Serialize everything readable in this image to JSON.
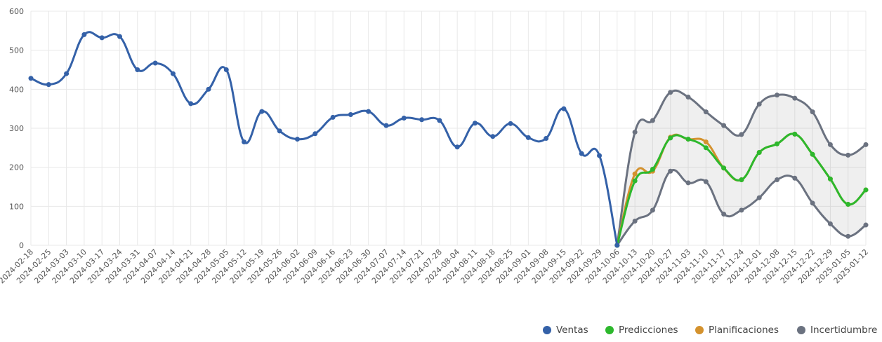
{
  "chart_data": {
    "type": "line",
    "categories": [
      "2024-02-18",
      "2024-02-25",
      "2024-03-03",
      "2024-03-10",
      "2024-03-17",
      "2024-03-24",
      "2024-03-31",
      "2024-04-07",
      "2024-04-14",
      "2024-04-21",
      "2024-04-28",
      "2024-05-05",
      "2024-05-12",
      "2024-05-19",
      "2024-05-26",
      "2024-06-02",
      "2024-06-09",
      "2024-06-16",
      "2024-06-23",
      "2024-06-30",
      "2024-07-07",
      "2024-07-14",
      "2024-07-21",
      "2024-07-28",
      "2024-08-04",
      "2024-08-11",
      "2024-08-18",
      "2024-08-25",
      "2024-09-01",
      "2024-09-08",
      "2024-09-15",
      "2024-09-22",
      "2024-09-29",
      "2024-10-06",
      "2024-10-13",
      "2024-10-20",
      "2024-10-27",
      "2024-11-03",
      "2024-11-10",
      "2024-11-17",
      "2024-11-24",
      "2024-12-01",
      "2024-12-08",
      "2024-12-15",
      "2024-12-22",
      "2024-12-29",
      "2025-01-05",
      "2025-01-12"
    ],
    "series": [
      {
        "name": "Ventas",
        "color": "#3461a8",
        "values": [
          428,
          412,
          440,
          540,
          532,
          535,
          450,
          467,
          440,
          363,
          400,
          450,
          265,
          343,
          293,
          272,
          286,
          328,
          335,
          343,
          307,
          326,
          322,
          320,
          252,
          313,
          279,
          312,
          276,
          274,
          350,
          235,
          230,
          0,
          null,
          null,
          null,
          null,
          null,
          null,
          null,
          null,
          null,
          null,
          null,
          null,
          null,
          null
        ]
      },
      {
        "name": "Predicciones",
        "color": "#2db82d",
        "values": [
          null,
          null,
          null,
          null,
          null,
          null,
          null,
          null,
          null,
          null,
          null,
          null,
          null,
          null,
          null,
          null,
          null,
          null,
          null,
          null,
          null,
          null,
          null,
          null,
          null,
          null,
          null,
          null,
          null,
          null,
          null,
          null,
          null,
          0,
          165,
          195,
          275,
          272,
          250,
          198,
          168,
          238,
          260,
          285,
          233,
          170,
          105,
          142
        ]
      },
      {
        "name": "Planificaciones",
        "color": "#d4922e",
        "values": [
          null,
          null,
          null,
          null,
          null,
          null,
          null,
          null,
          null,
          null,
          null,
          null,
          null,
          null,
          null,
          null,
          null,
          null,
          null,
          null,
          null,
          null,
          null,
          null,
          null,
          null,
          null,
          null,
          null,
          null,
          null,
          null,
          null,
          0,
          183,
          190,
          277,
          272,
          265,
          198,
          168,
          238,
          260,
          285,
          233,
          170,
          105,
          142
        ]
      },
      {
        "name": "Incertidumbre",
        "color": "#6b7280",
        "upper": [
          null,
          null,
          null,
          null,
          null,
          null,
          null,
          null,
          null,
          null,
          null,
          null,
          null,
          null,
          null,
          null,
          null,
          null,
          null,
          null,
          null,
          null,
          null,
          null,
          null,
          null,
          null,
          null,
          null,
          null,
          null,
          null,
          null,
          0,
          290,
          320,
          392,
          380,
          342,
          307,
          284,
          362,
          385,
          377,
          342,
          258,
          231,
          258
        ],
        "lower": [
          null,
          null,
          null,
          null,
          null,
          null,
          null,
          null,
          null,
          null,
          null,
          null,
          null,
          null,
          null,
          null,
          null,
          null,
          null,
          null,
          null,
          null,
          null,
          null,
          null,
          null,
          null,
          null,
          null,
          null,
          null,
          null,
          null,
          0,
          62,
          90,
          190,
          160,
          163,
          80,
          90,
          122,
          168,
          172,
          108,
          55,
          23,
          52
        ]
      }
    ],
    "ylim": [
      0,
      600
    ],
    "yticks": [
      0,
      100,
      200,
      300,
      400,
      500,
      600
    ],
    "grid": true
  }
}
